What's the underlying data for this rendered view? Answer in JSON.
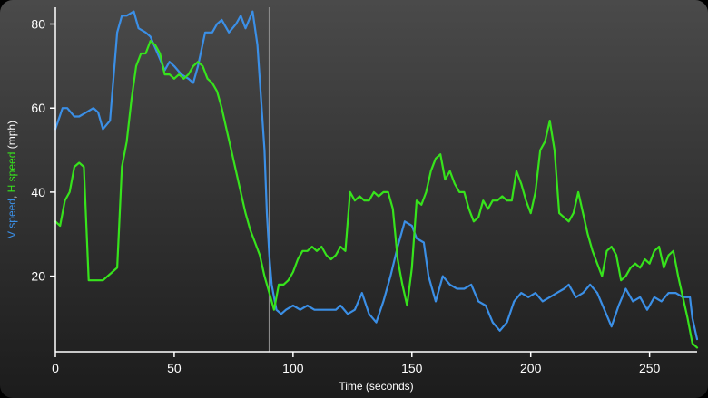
{
  "chart_data": {
    "type": "line",
    "xlabel": "Time (seconds)",
    "ylabel_parts": [
      {
        "text": "V speed",
        "color": "#3b8fe6"
      },
      {
        "text": ", ",
        "color": "#ffffff"
      },
      {
        "text": "H speed",
        "color": "#37e31c"
      },
      {
        "text": " (mph)",
        "color": "#ffffff"
      }
    ],
    "xlim": [
      0,
      270
    ],
    "ylim": [
      2,
      84
    ],
    "x_ticks": [
      0,
      50,
      100,
      150,
      200,
      250
    ],
    "x_tick_labels": [
      "0",
      "50",
      "100",
      "150",
      "200",
      "250"
    ],
    "y_ticks": [
      20,
      40,
      60,
      80
    ],
    "y_tick_labels": [
      "20",
      "40",
      "60",
      "80"
    ],
    "marker_x": 90,
    "grid": false,
    "series": [
      {
        "name": "V speed",
        "color": "#3b8fe6",
        "x": [
          0,
          3,
          5,
          8,
          10,
          13,
          16,
          18,
          20,
          23,
          26,
          28,
          30,
          33,
          35,
          38,
          40,
          43,
          46,
          48,
          50,
          53,
          56,
          58,
          60,
          63,
          66,
          68,
          70,
          73,
          76,
          78,
          80,
          83,
          85,
          88,
          89,
          90,
          91,
          93,
          95,
          97,
          100,
          103,
          106,
          109,
          112,
          115,
          118,
          120,
          123,
          126,
          129,
          132,
          135,
          138,
          141,
          144,
          147,
          150,
          152,
          155,
          157,
          160,
          163,
          166,
          169,
          172,
          175,
          178,
          181,
          184,
          187,
          190,
          193,
          196,
          199,
          202,
          205,
          208,
          211,
          214,
          216,
          219,
          222,
          225,
          228,
          231,
          234,
          237,
          240,
          243,
          246,
          249,
          252,
          255,
          258,
          261,
          264,
          267,
          268,
          270
        ],
        "y": [
          55,
          60,
          60,
          58,
          58,
          59,
          60,
          59,
          55,
          57,
          78,
          82,
          82,
          83,
          79,
          78,
          77,
          73,
          69,
          71,
          70,
          68,
          67,
          66,
          70,
          78,
          78,
          80,
          81,
          78,
          80,
          82,
          79,
          83,
          75,
          50,
          35,
          25,
          18,
          12,
          11,
          12,
          13,
          12,
          13,
          12,
          12,
          12,
          12,
          13,
          11,
          12,
          16,
          11,
          9,
          14,
          20,
          27,
          33,
          32,
          29,
          28,
          20,
          14,
          20,
          18,
          17,
          17,
          18,
          14,
          13,
          9,
          7,
          9,
          14,
          16,
          15,
          16,
          14,
          15,
          16,
          17,
          18,
          15,
          16,
          18,
          16,
          12,
          8,
          13,
          17,
          14,
          15,
          12,
          15,
          14,
          16,
          16,
          15,
          15,
          10,
          5
        ]
      },
      {
        "name": "H speed",
        "color": "#37e31c",
        "x": [
          0,
          2,
          4,
          6,
          8,
          10,
          12,
          14,
          16,
          18,
          20,
          22,
          24,
          26,
          28,
          30,
          32,
          34,
          36,
          38,
          40,
          42,
          44,
          46,
          48,
          50,
          52,
          54,
          56,
          58,
          60,
          62,
          64,
          66,
          68,
          70,
          72,
          74,
          76,
          78,
          80,
          82,
          84,
          86,
          88,
          90,
          92,
          94,
          96,
          98,
          100,
          102,
          104,
          106,
          108,
          110,
          112,
          114,
          116,
          118,
          120,
          122,
          124,
          126,
          128,
          130,
          132,
          134,
          136,
          138,
          140,
          142,
          144,
          146,
          148,
          150,
          152,
          154,
          156,
          158,
          160,
          162,
          164,
          166,
          168,
          170,
          172,
          174,
          176,
          178,
          180,
          182,
          184,
          186,
          188,
          190,
          192,
          194,
          196,
          198,
          200,
          202,
          204,
          206,
          208,
          210,
          212,
          214,
          216,
          218,
          220,
          222,
          224,
          226,
          228,
          230,
          232,
          234,
          236,
          238,
          240,
          242,
          244,
          246,
          248,
          250,
          252,
          254,
          256,
          258,
          260,
          262,
          264,
          266,
          268,
          270
        ],
        "y": [
          33,
          32,
          38,
          40,
          46,
          47,
          46,
          19,
          19,
          19,
          19,
          20,
          21,
          22,
          46,
          52,
          62,
          70,
          73,
          73,
          76,
          75,
          73,
          68,
          68,
          67,
          68,
          67,
          68,
          70,
          71,
          70,
          67,
          66,
          64,
          60,
          55,
          50,
          45,
          40,
          35,
          31,
          28,
          25,
          20,
          16,
          12,
          18,
          18,
          19,
          21,
          24,
          26,
          26,
          27,
          26,
          27,
          25,
          24,
          25,
          27,
          26,
          40,
          38,
          39,
          38,
          38,
          40,
          39,
          40,
          40,
          36,
          24,
          18,
          13,
          22,
          38,
          37,
          40,
          45,
          48,
          49,
          43,
          45,
          42,
          40,
          40,
          36,
          33,
          34,
          38,
          36,
          38,
          38,
          39,
          38,
          38,
          45,
          42,
          38,
          35,
          40,
          50,
          52,
          57,
          50,
          35,
          34,
          33,
          35,
          40,
          35,
          30,
          26,
          23,
          20,
          26,
          27,
          25,
          19,
          20,
          22,
          23,
          22,
          24,
          23,
          26,
          27,
          22,
          25,
          26,
          20,
          15,
          10,
          4,
          3
        ]
      }
    ]
  }
}
